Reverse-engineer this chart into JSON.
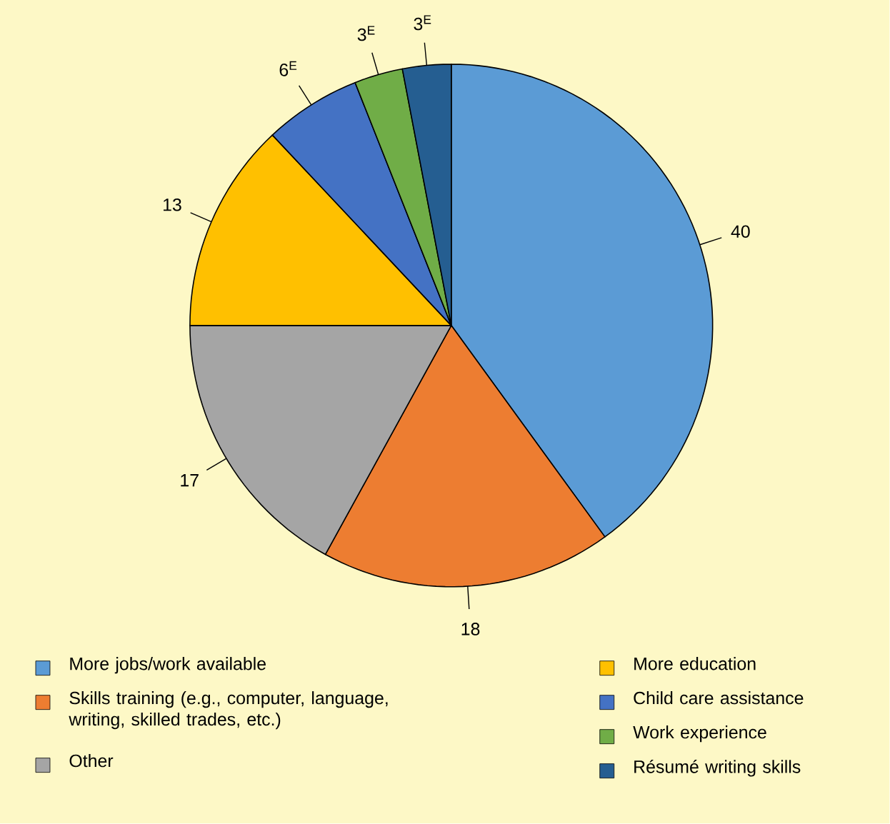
{
  "chart_data": {
    "type": "pie",
    "categories": [
      "More jobs/work available",
      "Skills training (e.g., computer, language, writing, skilled trades, etc.)",
      "Other",
      "More education",
      "Child care assistance",
      "Work experience",
      "Résumé writing skills"
    ],
    "values": [
      40,
      18,
      17,
      13,
      6,
      3,
      3
    ],
    "value_labels": [
      "40",
      "18",
      "17",
      "13",
      "6$^{E}$",
      "3$^{E}$",
      "3$^{E}$"
    ],
    "colors": [
      "#5b9bd5",
      "#ed7d31",
      "#a5a5a5",
      "#ffc000",
      "#4472c4",
      "#70ad47",
      "#255e91"
    ],
    "legend": "bottom"
  }
}
